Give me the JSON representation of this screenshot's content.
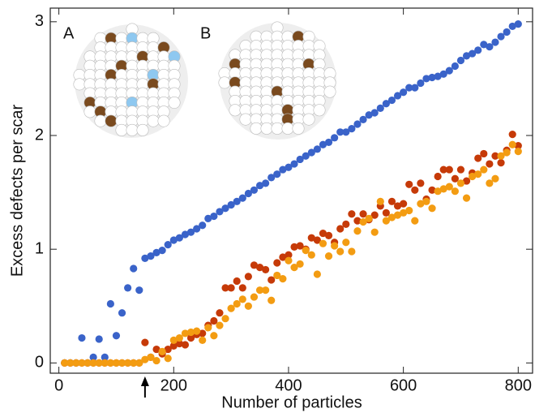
{
  "chart_data": {
    "type": "scatter",
    "xlabel": "Number of particles",
    "ylabel": "Excess defects per scar",
    "xlim": [
      -15,
      825
    ],
    "ylim": [
      -0.09,
      3.12
    ],
    "xticks": [
      0,
      200,
      400,
      600,
      800
    ],
    "yticks": [
      0,
      1,
      2,
      3
    ],
    "inset_labels": [
      "A",
      "B"
    ],
    "arrow_x": 150,
    "x": [
      10,
      20,
      30,
      40,
      50,
      60,
      70,
      80,
      90,
      100,
      110,
      120,
      130,
      140,
      150,
      160,
      170,
      180,
      190,
      200,
      210,
      220,
      230,
      240,
      250,
      260,
      270,
      280,
      290,
      300,
      310,
      320,
      330,
      340,
      350,
      360,
      370,
      380,
      390,
      400,
      410,
      420,
      430,
      440,
      450,
      460,
      470,
      480,
      490,
      500,
      510,
      520,
      530,
      540,
      550,
      560,
      570,
      580,
      590,
      600,
      610,
      620,
      630,
      640,
      650,
      660,
      670,
      680,
      690,
      700,
      710,
      720,
      730,
      740,
      750,
      760,
      770,
      780,
      790,
      800
    ],
    "series": [
      {
        "color": "#3a63c9",
        "values": [
          0,
          0,
          0,
          0.22,
          0,
          0.05,
          0.21,
          0.05,
          0.52,
          0.24,
          0.44,
          0.66,
          0.83,
          0.64,
          0.92,
          0.94,
          0.97,
          0.99,
          1.04,
          1.08,
          1.1,
          1.13,
          1.15,
          1.18,
          1.21,
          1.27,
          1.29,
          1.33,
          1.36,
          1.39,
          1.42,
          1.45,
          1.49,
          1.52,
          1.56,
          1.58,
          1.63,
          1.66,
          1.7,
          1.72,
          1.75,
          1.79,
          1.82,
          1.85,
          1.88,
          1.92,
          1.94,
          1.98,
          2.03,
          2.03,
          2.06,
          2.1,
          2.14,
          2.18,
          2.2,
          2.24,
          2.28,
          2.31,
          2.35,
          2.38,
          2.42,
          2.42,
          2.46,
          2.5,
          2.51,
          2.52,
          2.54,
          2.57,
          2.61,
          2.66,
          2.7,
          2.72,
          2.75,
          2.8,
          2.78,
          2.82,
          2.87,
          2.91,
          2.96,
          2.98
        ]
      },
      {
        "color": "#c63a08",
        "values": [
          0,
          0,
          0,
          0,
          0,
          0,
          0,
          0,
          0,
          0,
          0,
          0,
          0,
          0,
          0.18,
          0.05,
          0.12,
          0.08,
          0.12,
          0.15,
          0.17,
          0.16,
          0.22,
          0.25,
          0.26,
          0.33,
          0.37,
          0.44,
          0.66,
          0.66,
          0.72,
          0.66,
          0.76,
          0.86,
          0.84,
          0.82,
          0.73,
          0.88,
          0.93,
          0.95,
          1.02,
          1.03,
          1.0,
          1.1,
          1.08,
          1.14,
          1.12,
          1.06,
          1.18,
          1.22,
          1.31,
          1.25,
          1.31,
          1.26,
          1.3,
          1.38,
          1.32,
          1.42,
          1.38,
          1.4,
          1.57,
          1.52,
          1.58,
          1.44,
          1.52,
          1.64,
          1.7,
          1.7,
          1.62,
          1.7,
          1.6,
          1.67,
          1.8,
          1.84,
          1.75,
          1.82,
          1.76,
          1.87,
          2.01,
          1.91
        ]
      },
      {
        "color": "#f39c12",
        "values": [
          0,
          0,
          0,
          0,
          0,
          0,
          0,
          0,
          0,
          0,
          0,
          0,
          0,
          0,
          0.03,
          0.05,
          0.02,
          0.1,
          0.04,
          0.2,
          0.22,
          0.26,
          0.27,
          0.28,
          0.2,
          0.31,
          0.24,
          0.33,
          0.39,
          0.48,
          0.52,
          0.56,
          0.5,
          0.58,
          0.64,
          0.64,
          0.55,
          0.77,
          0.74,
          0.9,
          0.84,
          0.87,
          0.99,
          0.95,
          0.78,
          1.05,
          0.94,
          1.03,
          0.98,
          1.06,
          0.98,
          1.16,
          1.24,
          1.27,
          1.15,
          1.42,
          1.25,
          1.28,
          1.3,
          1.32,
          1.34,
          1.25,
          1.4,
          1.42,
          1.36,
          1.51,
          1.53,
          1.55,
          1.51,
          1.58,
          1.45,
          1.64,
          1.66,
          1.7,
          1.58,
          1.62,
          1.82,
          1.85,
          1.92,
          1.86
        ]
      }
    ]
  }
}
